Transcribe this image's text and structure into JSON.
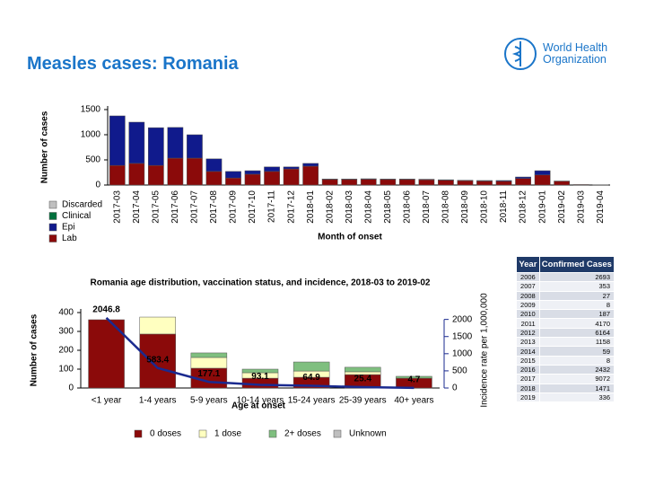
{
  "header": {
    "title": "Measles cases: Romania",
    "logo": "World Health Organization"
  },
  "chart_data": [
    {
      "type": "bar",
      "stacked": true,
      "y_label": "Number of cases",
      "x_label": "Month of onset",
      "categories": [
        "2017-03",
        "2017-04",
        "2017-05",
        "2017-06",
        "2017-07",
        "2017-08",
        "2017-09",
        "2017-10",
        "2017-11",
        "2017-12",
        "2018-01",
        "2018-02",
        "2018-03",
        "2018-04",
        "2018-05",
        "2018-06",
        "2018-07",
        "2018-08",
        "2018-09",
        "2018-10",
        "2018-11",
        "2018-12",
        "2019-01",
        "2019-02",
        "2019-03",
        "2019-04"
      ],
      "series": [
        {
          "name": "Lab",
          "color": "#8b0a0a",
          "values": [
            390,
            430,
            390,
            535,
            535,
            270,
            140,
            215,
            270,
            320,
            375,
            110,
            110,
            115,
            110,
            110,
            105,
            95,
            85,
            80,
            75,
            130,
            200,
            75,
            10,
            5
          ]
        },
        {
          "name": "Epi",
          "color": "#101a8c",
          "values": [
            985,
            820,
            750,
            610,
            465,
            250,
            130,
            70,
            90,
            40,
            55,
            10,
            10,
            10,
            10,
            10,
            10,
            10,
            10,
            10,
            15,
            30,
            85,
            5,
            0,
            0
          ]
        },
        {
          "name": "Clinical",
          "color": "#00703c",
          "values": [
            0,
            0,
            0,
            0,
            0,
            0,
            0,
            0,
            0,
            0,
            0,
            0,
            0,
            0,
            0,
            0,
            0,
            0,
            0,
            0,
            0,
            0,
            0,
            0,
            0,
            0
          ]
        },
        {
          "name": "Discarded",
          "color": "#bfbfbf",
          "values": [
            0,
            0,
            0,
            0,
            0,
            0,
            0,
            0,
            0,
            0,
            0,
            0,
            0,
            0,
            0,
            0,
            0,
            0,
            0,
            0,
            0,
            0,
            0,
            0,
            0,
            0
          ]
        }
      ],
      "ylim": [
        0,
        1500
      ],
      "yticks": [
        0,
        500,
        1000,
        1500
      ],
      "grid": false,
      "legend": "left"
    },
    {
      "type": "bar",
      "stacked": true,
      "title": "Romania age distribution, vaccination status, and incidence, 2018-03 to 2019-02",
      "y_label": "Number of cases",
      "y2_label": "Incidence rate per 1,000,000",
      "x_label": "Age at onset",
      "categories": [
        "<1 year",
        "1-4 years",
        "5-9 years",
        "10-14 years",
        "15-24 years",
        "25-39 years",
        "40+ years"
      ],
      "series": [
        {
          "name": "0 doses",
          "color": "#8b0a0a",
          "values": [
            362,
            286,
            105,
            52,
            57,
            71,
            52
          ]
        },
        {
          "name": "1 dose",
          "color": "#ffffc0",
          "values": [
            0,
            90,
            57,
            29,
            33,
            15,
            0
          ]
        },
        {
          "name": "2+ doses",
          "color": "#7fbf7f",
          "values": [
            0,
            0,
            24,
            19,
            48,
            24,
            10
          ]
        },
        {
          "name": "Unknown",
          "color": "#bfbfbf",
          "values": [
            0,
            0,
            0,
            0,
            0,
            0,
            0
          ]
        },
        {
          "type": "line",
          "axis": "y2",
          "color": "#1a2a8f",
          "values": [
            2046.8,
            583.4,
            177.1,
            93.1,
            64.9,
            25.4,
            4.7
          ]
        }
      ],
      "ylim": [
        0,
        400
      ],
      "yticks": [
        0,
        100,
        200,
        300,
        400
      ],
      "y2lim": [
        0,
        2200
      ],
      "y2ticks": [
        0,
        500,
        1000,
        1500,
        2000
      ],
      "grid": false,
      "legend": "bottom"
    }
  ],
  "table": {
    "columns": [
      "Year",
      "Confirmed Cases"
    ],
    "rows": [
      [
        2006,
        2693
      ],
      [
        2007,
        353
      ],
      [
        2008,
        27
      ],
      [
        2009,
        8
      ],
      [
        2010,
        187
      ],
      [
        2011,
        4170
      ],
      [
        2012,
        6164
      ],
      [
        2013,
        1158
      ],
      [
        2014,
        59
      ],
      [
        2015,
        8
      ],
      [
        2016,
        2432
      ],
      [
        2017,
        9072
      ],
      [
        2018,
        1471
      ],
      [
        2019,
        336
      ]
    ]
  }
}
